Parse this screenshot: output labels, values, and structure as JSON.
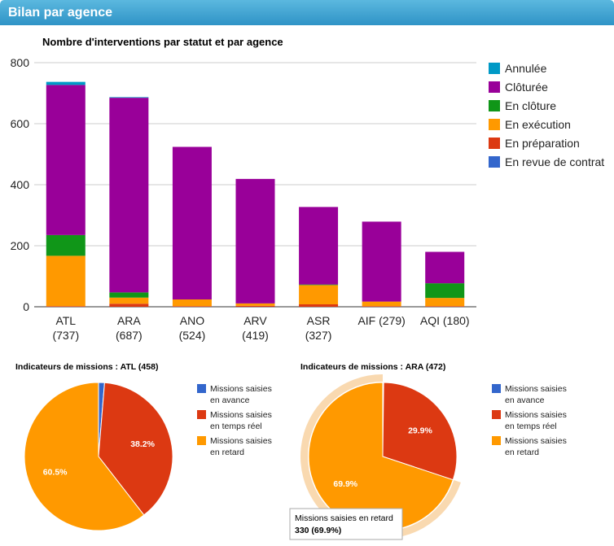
{
  "header": {
    "title": "Bilan par agence"
  },
  "chart_data": [
    {
      "type": "bar",
      "stacked": true,
      "title": "Nombre d'interventions par statut et par agence",
      "categories": [
        "ATL",
        "ARA",
        "ANO",
        "ARV",
        "ASR",
        "AIF (279)",
        "AQI (180)"
      ],
      "category_totals": [
        "(737)",
        "(687)",
        "(524)",
        "(419)",
        "(327)",
        "",
        ""
      ],
      "ylim": [
        0,
        800
      ],
      "yticks": [
        "0",
        "200",
        "400",
        "600",
        "800"
      ],
      "grid": true,
      "legend_position": "right",
      "series": [
        {
          "name": "En revue de contrat",
          "color": "#3366cc",
          "values": [
            0,
            0,
            0,
            0,
            0,
            0,
            0
          ]
        },
        {
          "name": "En préparation",
          "color": "#dc3912",
          "values": [
            2,
            10,
            2,
            3,
            8,
            2,
            2
          ]
        },
        {
          "name": "En exécution",
          "color": "#ff9900",
          "values": [
            165,
            20,
            22,
            8,
            63,
            15,
            27
          ]
        },
        {
          "name": "En clôture",
          "color": "#109618",
          "values": [
            68,
            17,
            0,
            0,
            2,
            0,
            48
          ]
        },
        {
          "name": "Clôturée",
          "color": "#990099",
          "values": [
            492,
            638,
            500,
            408,
            254,
            262,
            103
          ]
        },
        {
          "name": "Annulée",
          "color": "#0099c6",
          "values": [
            10,
            2,
            0,
            0,
            0,
            0,
            0
          ]
        }
      ]
    },
    {
      "type": "pie",
      "title": "Indicateurs de missions : ATL (458)",
      "legend_position": "right",
      "slices": [
        {
          "label": "Missions saisies en avance",
          "value": 1.3,
          "color": "#3366cc",
          "display": ""
        },
        {
          "label": "Missions saisies en temps réel",
          "value": 38.2,
          "color": "#dc3912",
          "display": "38.2%"
        },
        {
          "label": "Missions saisies en retard",
          "value": 60.5,
          "color": "#ff9900",
          "display": "60.5%"
        }
      ]
    },
    {
      "type": "pie",
      "title": "Indicateurs de missions : ARA (472)",
      "legend_position": "right",
      "highlighted": 2,
      "tooltip": {
        "line1": "Missions saisies en retard",
        "line2": "330 (69.9%)"
      },
      "slices": [
        {
          "label": "Missions saisies en avance",
          "value": 0.2,
          "color": "#3366cc",
          "display": ""
        },
        {
          "label": "Missions saisies en temps réel",
          "value": 29.9,
          "color": "#dc3912",
          "display": "29.9%"
        },
        {
          "label": "Missions saisies en retard",
          "value": 69.9,
          "color": "#ff9900",
          "display": "69.9%"
        }
      ]
    }
  ]
}
